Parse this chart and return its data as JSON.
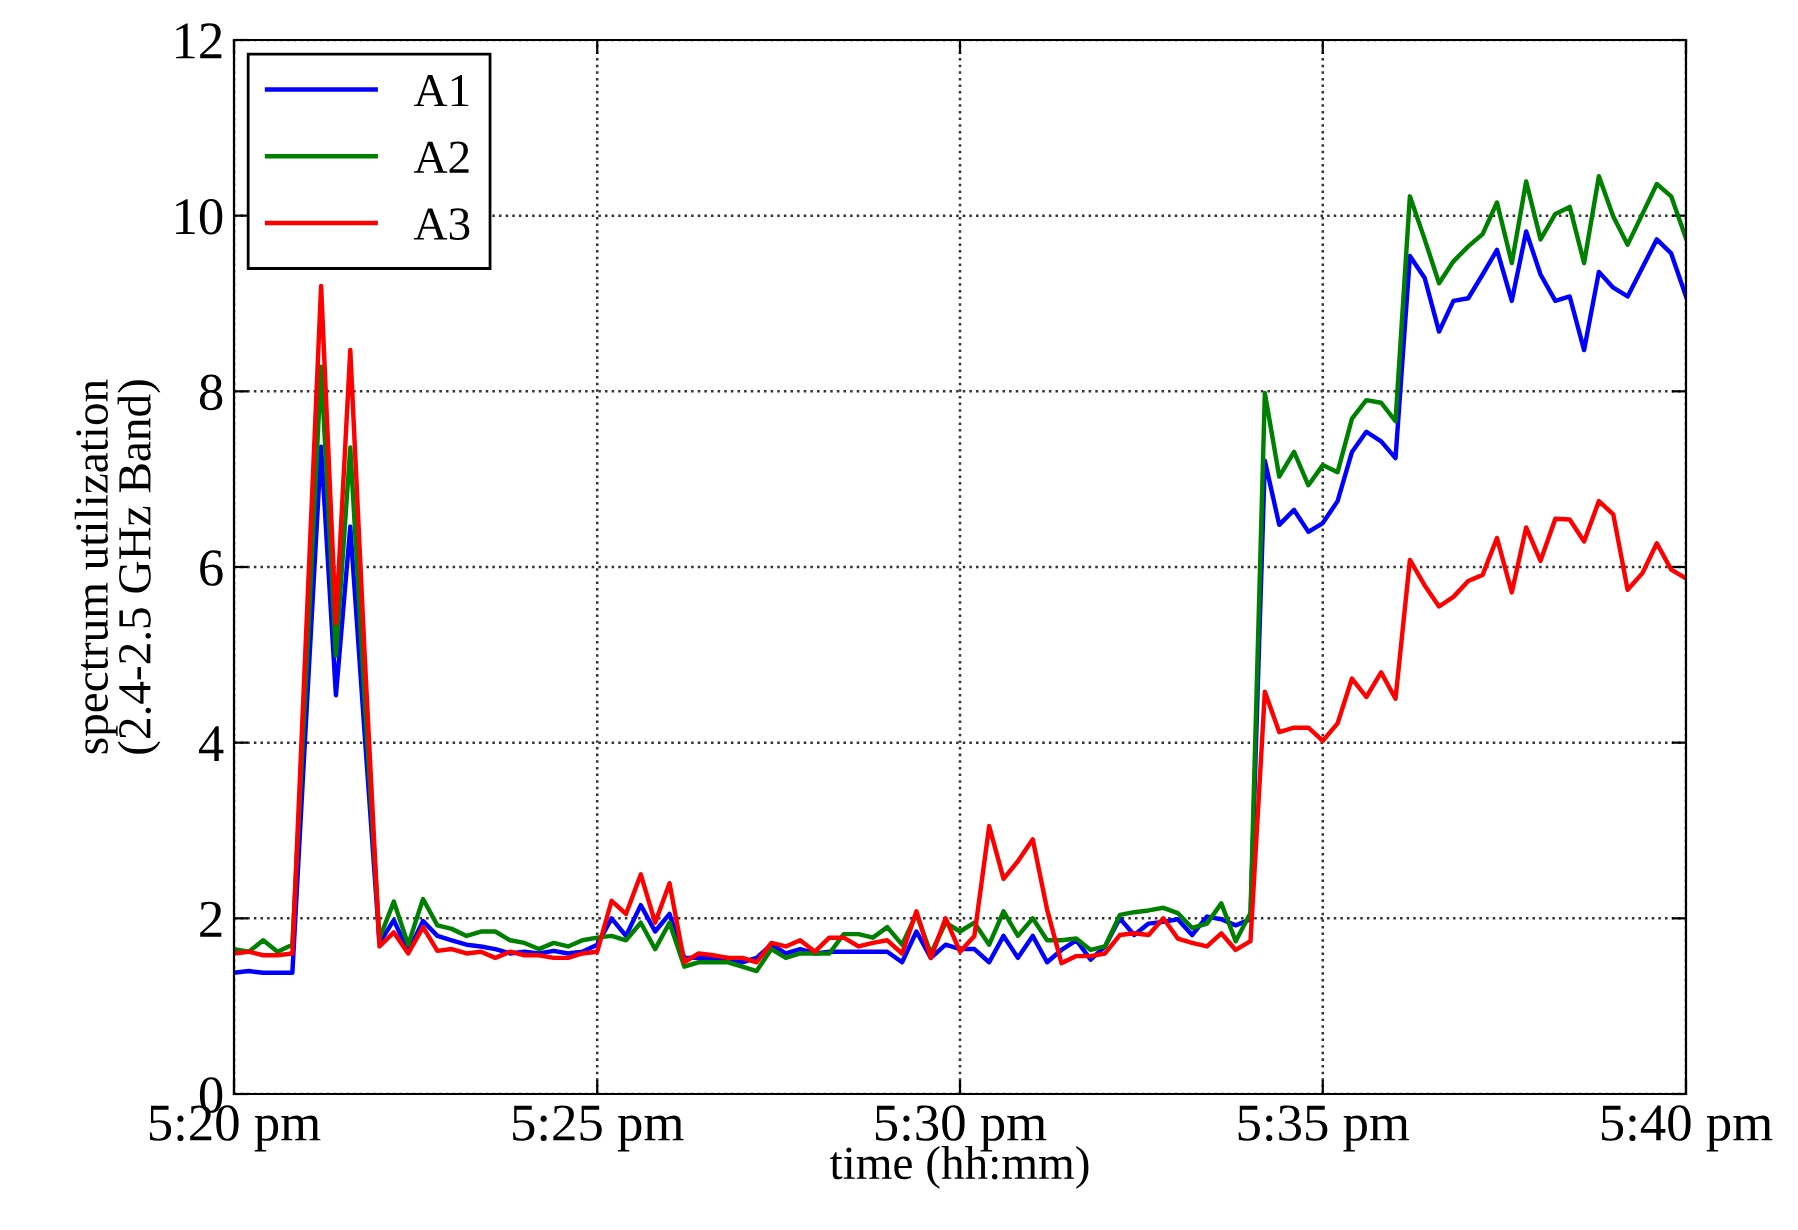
{
  "chart_data": {
    "type": "line",
    "xlabel": "time (hh:mm)",
    "ylabel": "spectrum utilization\n(2.4-2.5 GHz Band)",
    "x": [
      17.3333,
      17.3367,
      17.34,
      17.3433,
      17.3467,
      17.35,
      17.3533,
      17.3567,
      17.36,
      17.3633,
      17.3667,
      17.37,
      17.3733,
      17.3767,
      17.38,
      17.3833,
      17.3867,
      17.39,
      17.3933,
      17.3967,
      17.4,
      17.4033,
      17.4067,
      17.41,
      17.4133,
      17.4167,
      17.42,
      17.4233,
      17.4267,
      17.43,
      17.4333,
      17.4367,
      17.44,
      17.4433,
      17.4467,
      17.45,
      17.4533,
      17.4567,
      17.46,
      17.4633,
      17.4667,
      17.47,
      17.4733,
      17.4767,
      17.48,
      17.4833,
      17.4867,
      17.49,
      17.4933,
      17.4967,
      17.5,
      17.5033,
      17.5067,
      17.51,
      17.5133,
      17.5167,
      17.52,
      17.5233,
      17.5267,
      17.53,
      17.5333,
      17.5367,
      17.54,
      17.5433,
      17.5467,
      17.55,
      17.5533,
      17.5567,
      17.56,
      17.5633,
      17.5667,
      17.57,
      17.5733,
      17.5767,
      17.58,
      17.5833,
      17.5867,
      17.59,
      17.5933,
      17.5967,
      17.6,
      17.6033,
      17.6067,
      17.61,
      17.6133,
      17.6167,
      17.62,
      17.6233,
      17.6267,
      17.63,
      17.6333,
      17.6367,
      17.64,
      17.6433,
      17.6467,
      17.65,
      17.6533,
      17.6567,
      17.66,
      17.6633,
      17.6667
    ],
    "series": [
      {
        "name": "A1",
        "color": "#0000ff",
        "values": [
          1.38,
          1.4,
          1.38,
          1.38,
          1.38,
          4.4,
          7.37,
          4.54,
          6.46,
          4.1,
          1.72,
          1.98,
          1.62,
          1.97,
          1.8,
          1.75,
          1.7,
          1.68,
          1.65,
          1.6,
          1.62,
          1.6,
          1.63,
          1.6,
          1.62,
          1.7,
          2.0,
          1.8,
          2.15,
          1.85,
          2.05,
          1.55,
          1.55,
          1.55,
          1.55,
          1.5,
          1.55,
          1.7,
          1.6,
          1.65,
          1.6,
          1.62,
          1.62,
          1.62,
          1.62,
          1.62,
          1.5,
          1.85,
          1.55,
          1.7,
          1.65,
          1.65,
          1.5,
          1.8,
          1.55,
          1.8,
          1.5,
          1.64,
          1.75,
          1.53,
          1.68,
          2.0,
          1.81,
          1.94,
          1.96,
          1.99,
          1.81,
          2.02,
          1.99,
          1.92,
          1.99,
          7.21,
          6.48,
          6.65,
          6.4,
          6.5,
          6.75,
          7.31,
          7.54,
          7.43,
          7.24,
          9.54,
          9.29,
          8.68,
          9.03,
          9.06,
          9.33,
          9.61,
          9.03,
          9.82,
          9.33,
          9.03,
          9.08,
          8.47,
          9.36,
          9.18,
          9.08,
          9.41,
          9.73,
          9.57,
          9.08
        ]
      },
      {
        "name": "A2",
        "color": "#008000",
        "values": [
          1.65,
          1.62,
          1.75,
          1.62,
          1.7,
          4.9,
          8.28,
          4.99,
          7.36,
          4.5,
          1.77,
          2.19,
          1.7,
          2.22,
          1.92,
          1.88,
          1.8,
          1.85,
          1.85,
          1.75,
          1.72,
          1.65,
          1.72,
          1.68,
          1.75,
          1.78,
          1.8,
          1.75,
          1.95,
          1.65,
          1.95,
          1.45,
          1.5,
          1.5,
          1.5,
          1.45,
          1.4,
          1.65,
          1.55,
          1.6,
          1.6,
          1.6,
          1.82,
          1.82,
          1.78,
          1.9,
          1.7,
          2.05,
          1.6,
          1.95,
          1.85,
          1.95,
          1.7,
          2.08,
          1.8,
          2.0,
          1.75,
          1.75,
          1.77,
          1.64,
          1.68,
          2.04,
          2.07,
          2.09,
          2.12,
          2.06,
          1.89,
          1.94,
          2.17,
          1.74,
          2.06,
          7.98,
          7.03,
          7.31,
          6.93,
          7.16,
          7.08,
          7.69,
          7.9,
          7.87,
          7.66,
          10.22,
          9.73,
          9.23,
          9.48,
          9.65,
          9.79,
          10.15,
          9.46,
          10.39,
          9.73,
          10.02,
          10.1,
          9.46,
          10.45,
          9.99,
          9.67,
          10.02,
          10.36,
          10.22,
          9.74
        ]
      },
      {
        "name": "A3",
        "color": "#ff0000",
        "values": [
          1.6,
          1.62,
          1.58,
          1.58,
          1.6,
          5.4,
          9.2,
          5.36,
          8.47,
          5.0,
          1.68,
          1.84,
          1.6,
          1.9,
          1.63,
          1.65,
          1.6,
          1.62,
          1.55,
          1.62,
          1.58,
          1.58,
          1.55,
          1.55,
          1.6,
          1.62,
          2.2,
          2.05,
          2.5,
          1.95,
          2.4,
          1.5,
          1.6,
          1.58,
          1.55,
          1.55,
          1.5,
          1.72,
          1.68,
          1.75,
          1.62,
          1.78,
          1.78,
          1.68,
          1.72,
          1.75,
          1.6,
          2.08,
          1.55,
          2.0,
          1.62,
          1.8,
          3.05,
          2.45,
          2.65,
          2.9,
          2.1,
          1.49,
          1.57,
          1.57,
          1.6,
          1.81,
          1.83,
          1.81,
          2.0,
          1.77,
          1.72,
          1.68,
          1.83,
          1.64,
          1.74,
          4.58,
          4.12,
          4.17,
          4.17,
          4.02,
          4.22,
          4.73,
          4.52,
          4.8,
          4.5,
          6.08,
          5.79,
          5.55,
          5.66,
          5.84,
          5.91,
          6.33,
          5.71,
          6.45,
          6.07,
          6.55,
          6.54,
          6.29,
          6.75,
          6.6,
          5.74,
          5.93,
          6.27,
          5.97,
          5.87
        ]
      }
    ],
    "xlim": [
      17.3333,
      17.6667
    ],
    "xticks": [
      {
        "value": 17.3333,
        "label": "5:20 pm"
      },
      {
        "value": 17.4167,
        "label": "5:25 pm"
      },
      {
        "value": 17.5,
        "label": "5:30 pm"
      },
      {
        "value": 17.5833,
        "label": "5:35 pm"
      },
      {
        "value": 17.6667,
        "label": "5:40 pm"
      }
    ],
    "ylim": [
      0,
      12
    ],
    "yticks": [
      0,
      2,
      4,
      6,
      8,
      10,
      12
    ],
    "grid": true,
    "legend": "top left",
    "marker": "none",
    "line_style": "solid"
  }
}
